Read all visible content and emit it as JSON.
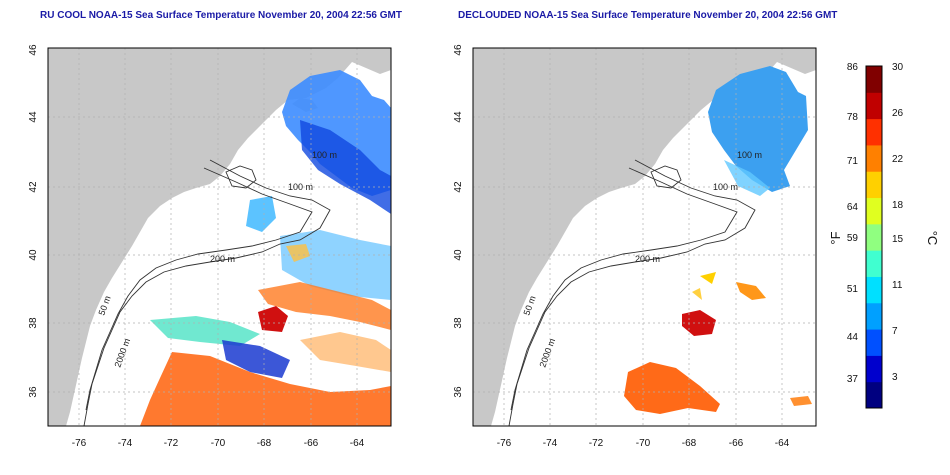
{
  "left_panel": {
    "title": "RU COOL NOAA-15 Sea Surface Temperature November 20, 2004 22:56 GMT"
  },
  "right_panel": {
    "title": "DECLOUDED NOAA-15 Sea Surface Temperature November 20, 2004 22:56 GMT"
  },
  "map_axes": {
    "lon_ticks": [
      "-76",
      "-74",
      "-72",
      "-70",
      "-68",
      "-66",
      "-64"
    ],
    "lat_ticks": [
      "36",
      "38",
      "40",
      "42",
      "44",
      "46"
    ]
  },
  "contour_labels": [
    "100 m",
    "100 m",
    "50 m",
    "200 m",
    "50 m",
    "2000 m"
  ],
  "colorbar": {
    "fahrenheit_label": "°F",
    "celsius_label": "°C",
    "fahrenheit_ticks": [
      "86",
      "78",
      "71",
      "64",
      "59",
      "51",
      "44",
      "37"
    ],
    "celsius_ticks": [
      "30",
      "26",
      "22",
      "18",
      "15",
      "11",
      "7",
      "3"
    ],
    "colors": [
      "#000080",
      "#0000cd",
      "#0050ff",
      "#00a0ff",
      "#00e0ff",
      "#40ffd0",
      "#90ff80",
      "#e0ff20",
      "#ffd000",
      "#ff8000",
      "#ff3000",
      "#c00000",
      "#800000"
    ]
  },
  "colors": {
    "land": "#c8c8c8",
    "ocean": "#ffffff",
    "title": "#1a1aa6",
    "frame": "#000000",
    "grid": "#b0b0b0"
  }
}
